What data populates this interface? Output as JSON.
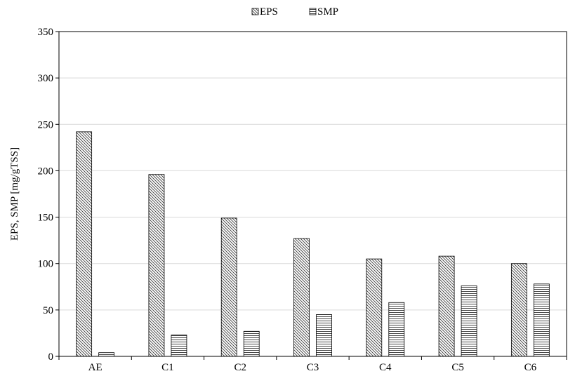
{
  "chart_data": {
    "type": "bar",
    "categories": [
      "AE",
      "C1",
      "C2",
      "C3",
      "C4",
      "C5",
      "C6"
    ],
    "series": [
      {
        "name": "EPS",
        "pattern": "diagonal-hatch",
        "values": [
          242,
          196,
          149,
          127,
          105,
          108,
          100
        ]
      },
      {
        "name": "SMP",
        "pattern": "horizontal-hatch",
        "values": [
          4,
          23,
          27,
          45,
          58,
          76,
          78
        ]
      }
    ],
    "title": "",
    "xlabel": "",
    "ylabel": "EPS, SMP [mg/gTSS]",
    "ylim": [
      0,
      350
    ],
    "yticks": [
      0,
      50,
      100,
      150,
      200,
      250,
      300,
      350
    ],
    "grid": true,
    "legend_position": "top-center"
  }
}
